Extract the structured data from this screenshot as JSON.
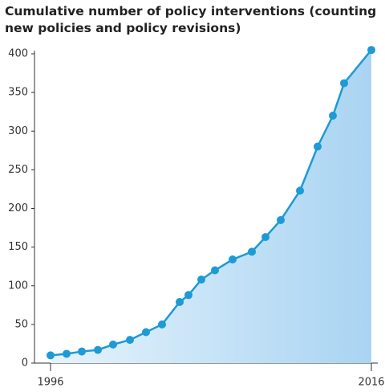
{
  "chart_data": {
    "type": "line",
    "title": "Cumulative number of policy interventions (counting new policies and policy revisions)",
    "x": [
      1996,
      1997,
      1997.95,
      1998.95,
      1999.9,
      2000.95,
      2001.95,
      2002.95,
      2004.05,
      2004.6,
      2005.4,
      2006.25,
      2007.35,
      2008.55,
      2009.4,
      2010.35,
      2011.55,
      2012.65,
      2013.6,
      2014.3,
      2016
    ],
    "values": [
      10,
      12,
      15,
      17,
      24,
      30,
      40,
      50,
      79,
      88,
      108,
      120,
      134,
      144,
      163,
      185,
      223,
      280,
      320,
      362,
      405
    ],
    "color": "#1e9ad6",
    "xlim": [
      1996,
      2016
    ],
    "xticks": [
      1996,
      2016
    ],
    "ylim": [
      0,
      400
    ],
    "yticks": [
      0,
      50,
      100,
      150,
      200,
      250,
      300,
      350,
      400
    ],
    "grid": false
  }
}
